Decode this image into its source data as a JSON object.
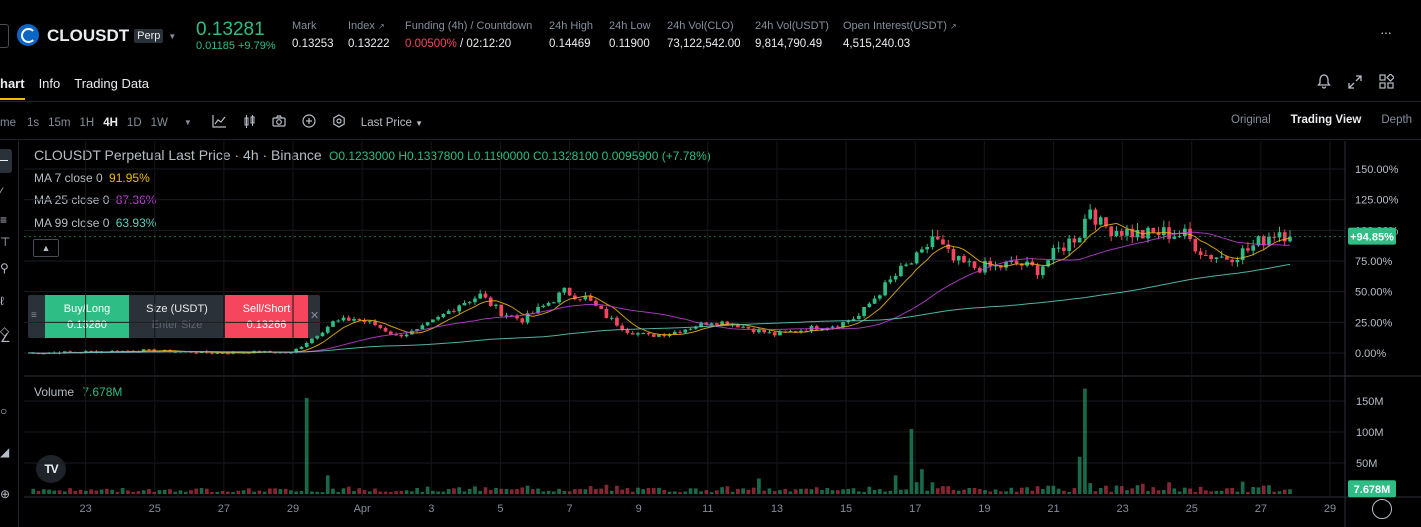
{
  "header": {
    "symbol": "CLOUSDT",
    "perp_badge": "Perp",
    "price": "0.13281",
    "change": "0.01185 +9.79%",
    "stats": [
      {
        "label": "Mark",
        "value": "0.13253"
      },
      {
        "label": "Index",
        "value": "0.13222"
      },
      {
        "label": "Funding (4h) / Countdown",
        "funding": "0.00500%",
        "countdown": "/ 02:12:20"
      },
      {
        "label": "24h High",
        "value": "0.14469"
      },
      {
        "label": "24h Low",
        "value": "0.11900"
      },
      {
        "label": "24h Vol(CLO)",
        "value": "73,122,542.00"
      },
      {
        "label": "24h Vol(USDT)",
        "value": "9,814,790.49"
      },
      {
        "label": "Open Interest(USDT)",
        "value": "4,515,240.03"
      }
    ],
    "more_icon": "more-dots-icon"
  },
  "tabs": [
    {
      "label": "hart",
      "active": true
    },
    {
      "label": "Info",
      "active": false
    },
    {
      "label": "Trading Data",
      "active": false
    }
  ],
  "toolbar": {
    "time_label": "me",
    "intervals": [
      "1s",
      "15m",
      "1H",
      "4H",
      "1D",
      "1W"
    ],
    "active_interval": "4H",
    "price_type": "Last Price",
    "views": [
      "Original",
      "Trading View",
      "Depth"
    ],
    "active_view": "Trading View"
  },
  "legend": {
    "title": "CLOUSDT Perpetual Last Price · 4h · Binance",
    "ohlc": "O0.1233000 H0.1337800 L0.1190000 C0.1328100 0.0095900 (+7.78%)",
    "ma7_label": "MA 7 close 0",
    "ma7_value": "91.95%",
    "ma25_label": "MA 25 close 0",
    "ma25_value": "87.36%",
    "ma99_label": "MA 99 close 0",
    "ma99_value": "63.93%",
    "volume_label": "Volume",
    "volume_value": "7.678M"
  },
  "order_panel": {
    "buy_label": "Buy/Long",
    "buy_price": "0.13280",
    "size_label": "Size (USDT)",
    "size_placeholder": "Enter Size",
    "sell_label": "Sell/Short",
    "sell_price": "0.13266"
  },
  "colors": {
    "up": "#2ebd85",
    "down": "#f6465d",
    "ma7": "#f0b90b",
    "ma25": "#c03fd8",
    "ma99": "#5fd0c0"
  },
  "chart_data": {
    "type": "candlestick",
    "price_axis_ticks": [
      "150.00%",
      "125.00%",
      "100.00%",
      "75.00%",
      "50.00%",
      "25.00%",
      "0.00%"
    ],
    "price_axis_values": [
      150,
      125,
      100,
      75,
      50,
      25,
      0
    ],
    "current_change_label": "+94.85%",
    "current_change_value": 94.85,
    "volume_axis_ticks": [
      "150M",
      "100M",
      "50M"
    ],
    "volume_axis_values": [
      150,
      100,
      50
    ],
    "current_volume_label": "7.678M",
    "current_volume_value": 7.678,
    "x_ticks": [
      "23",
      "25",
      "27",
      "29",
      "Apr",
      "3",
      "5",
      "7",
      "9",
      "11",
      "13",
      "15",
      "17",
      "19",
      "21",
      "23",
      "25",
      "27",
      "29"
    ],
    "anchors": [
      [
        0,
        0
      ],
      [
        12,
        1
      ],
      [
        22,
        2
      ],
      [
        30,
        1
      ],
      [
        36,
        0
      ],
      [
        44,
        1
      ],
      [
        50,
        0
      ],
      [
        54,
        12
      ],
      [
        58,
        25
      ],
      [
        62,
        28
      ],
      [
        66,
        23
      ],
      [
        70,
        14
      ],
      [
        74,
        18
      ],
      [
        78,
        28
      ],
      [
        82,
        40
      ],
      [
        86,
        47
      ],
      [
        90,
        33
      ],
      [
        94,
        27
      ],
      [
        98,
        38
      ],
      [
        102,
        50
      ],
      [
        106,
        45
      ],
      [
        110,
        30
      ],
      [
        114,
        18
      ],
      [
        118,
        14
      ],
      [
        122,
        16
      ],
      [
        126,
        21
      ],
      [
        130,
        26
      ],
      [
        134,
        24
      ],
      [
        138,
        19
      ],
      [
        142,
        15
      ],
      [
        146,
        18
      ],
      [
        150,
        21
      ],
      [
        154,
        23
      ],
      [
        158,
        30
      ],
      [
        162,
        50
      ],
      [
        166,
        67
      ],
      [
        170,
        80
      ],
      [
        172,
        95
      ],
      [
        176,
        75
      ],
      [
        180,
        70
      ],
      [
        184,
        70
      ],
      [
        188,
        73
      ],
      [
        192,
        68
      ],
      [
        196,
        84
      ],
      [
        200,
        98
      ],
      [
        202,
        120
      ],
      [
        204,
        104
      ],
      [
        208,
        100
      ],
      [
        212,
        96
      ],
      [
        216,
        98
      ],
      [
        220,
        96
      ],
      [
        224,
        80
      ],
      [
        228,
        78
      ],
      [
        232,
        84
      ],
      [
        236,
        96
      ],
      [
        238,
        100
      ],
      [
        240,
        94.85
      ]
    ],
    "volume_spikes": [
      [
        53,
        155
      ],
      [
        57,
        30
      ],
      [
        139,
        25
      ],
      [
        165,
        30
      ],
      [
        168,
        105
      ],
      [
        170,
        40
      ],
      [
        200,
        60
      ],
      [
        201,
        170
      ],
      [
        231,
        20
      ]
    ]
  }
}
